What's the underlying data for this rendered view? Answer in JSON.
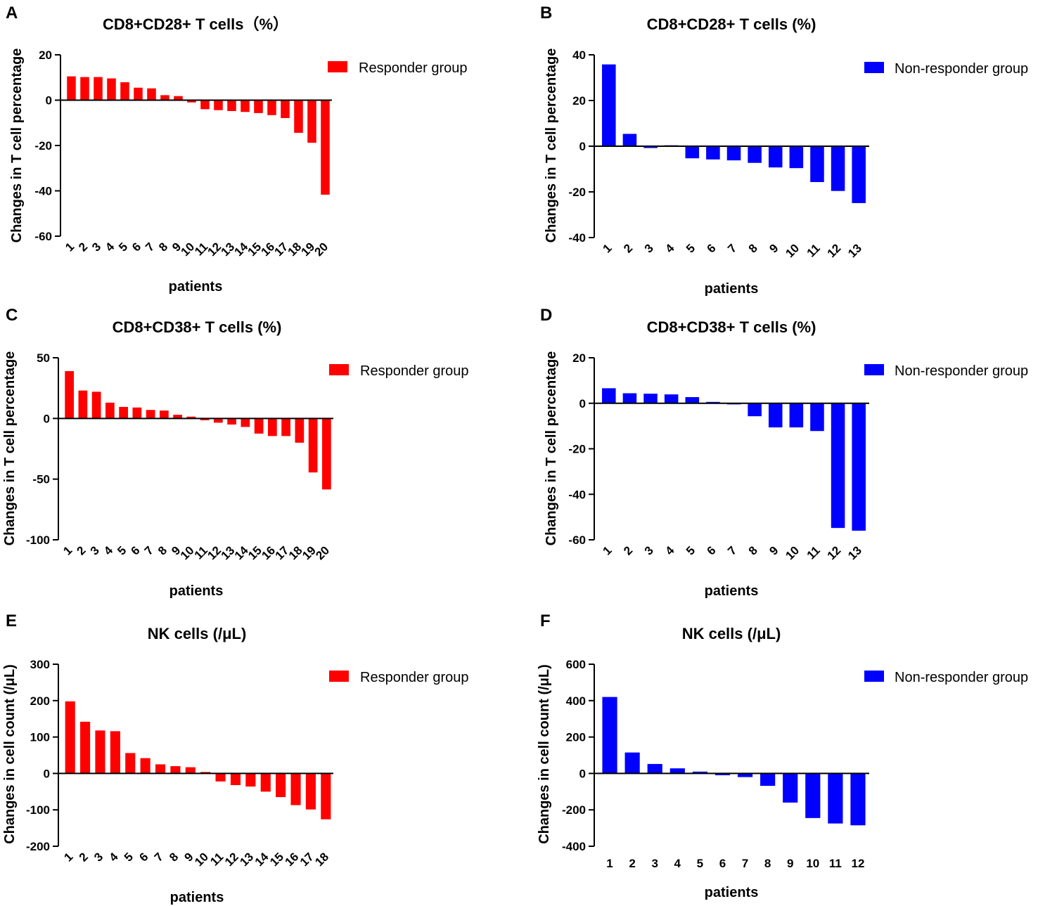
{
  "colors": {
    "responder": "#ff0000",
    "non_responder": "#0000ff",
    "axis": "#000000"
  },
  "chart_data": [
    {
      "id": "A",
      "panel_label": "A",
      "type": "bar",
      "title": "CD8+CD28+ T cells（%）",
      "xlabel": "patients",
      "ylabel": "Changes in T cell percentage",
      "ylim": [
        -60,
        20
      ],
      "yticks": [
        20,
        0,
        -20,
        -40,
        -60
      ],
      "legend": "Responder group",
      "group": "responder",
      "categories": [
        "1",
        "2",
        "3",
        "4",
        "5",
        "6",
        "7",
        "8",
        "9",
        "10",
        "11",
        "12",
        "13",
        "14",
        "15",
        "16",
        "17",
        "18",
        "19",
        "20"
      ],
      "values": [
        10.5,
        10.2,
        10.2,
        9.6,
        7.9,
        5.5,
        5.2,
        2.2,
        1.8,
        -1.0,
        -4.0,
        -4.4,
        -4.8,
        -5.2,
        -5.7,
        -6.6,
        -7.9,
        -14.4,
        -18.8,
        -41.7
      ]
    },
    {
      "id": "B",
      "panel_label": "B",
      "type": "bar",
      "title": "CD8+CD28+ T cells (%)",
      "xlabel": "patients",
      "ylabel": "Changes in T cell percentage",
      "ylim": [
        -40,
        40
      ],
      "yticks": [
        40,
        20,
        0,
        -20,
        -40
      ],
      "legend": "Non-responder group",
      "group": "non_responder",
      "categories": [
        "1",
        "2",
        "3",
        "4",
        "5",
        "6",
        "7",
        "8",
        "9",
        "10",
        "11",
        "12",
        "13"
      ],
      "values": [
        35.8,
        5.4,
        -0.8,
        0.4,
        -5.3,
        -5.8,
        -6.2,
        -7.3,
        -9.3,
        -9.6,
        -15.7,
        -19.6,
        -24.9
      ]
    },
    {
      "id": "C",
      "panel_label": "C",
      "type": "bar",
      "title": "CD8+CD38+ T cells (%)",
      "xlabel": "patients",
      "ylabel": "Changes in T cell percentage",
      "ylim": [
        -100,
        50
      ],
      "yticks": [
        50,
        0,
        -50,
        -100
      ],
      "legend": "Responder group",
      "group": "responder",
      "categories": [
        "1",
        "2",
        "3",
        "4",
        "5",
        "6",
        "7",
        "8",
        "9",
        "10",
        "11",
        "12",
        "13",
        "14",
        "15",
        "16",
        "17",
        "18",
        "19",
        "20"
      ],
      "values": [
        39,
        23,
        22,
        13,
        9.5,
        9,
        7,
        6.5,
        3,
        1.5,
        -1.5,
        -3.5,
        -5,
        -7,
        -12.5,
        -14.5,
        -14.5,
        -20,
        -44.5,
        -58.5
      ]
    },
    {
      "id": "D",
      "panel_label": "D",
      "type": "bar",
      "title": "CD8+CD38+ T cells (%)",
      "xlabel": "patients",
      "ylabel": "Changes in T cell percentage",
      "ylim": [
        -60,
        20
      ],
      "yticks": [
        20,
        0,
        -20,
        -40,
        -60
      ],
      "legend": "Non-responder group",
      "group": "non_responder",
      "categories": [
        "1",
        "2",
        "3",
        "4",
        "5",
        "6",
        "7",
        "8",
        "9",
        "10",
        "11",
        "12",
        "13"
      ],
      "values": [
        6.6,
        4.4,
        4.2,
        3.9,
        2.7,
        0.6,
        -0.5,
        -5.7,
        -10.6,
        -10.6,
        -12.2,
        -54.8,
        -56.0
      ]
    },
    {
      "id": "E",
      "panel_label": "E",
      "type": "bar",
      "title": "NK cells (/μL)",
      "xlabel": "patients",
      "ylabel": "Changes in cell count (/μL)",
      "ylim": [
        -200,
        300
      ],
      "yticks": [
        300,
        200,
        100,
        0,
        -100,
        -200
      ],
      "legend": "Responder group",
      "group": "responder",
      "categories": [
        "1",
        "2",
        "3",
        "4",
        "5",
        "6",
        "7",
        "8",
        "9",
        "10",
        "11",
        "12",
        "13",
        "14",
        "15",
        "16",
        "17",
        "18"
      ],
      "values": [
        198,
        142,
        118,
        116,
        56,
        42,
        25,
        20,
        17,
        4,
        -22,
        -32,
        -36,
        -50,
        -65,
        -87,
        -99,
        -126
      ]
    },
    {
      "id": "F",
      "panel_label": "F",
      "type": "bar",
      "title": "NK cells (/μL)",
      "xlabel": "patients",
      "ylabel": "Changes in cell count (/μL)",
      "ylim": [
        -400,
        600
      ],
      "yticks": [
        600,
        400,
        200,
        0,
        -200,
        -400
      ],
      "legend": "Non-responder group",
      "group": "non_responder",
      "categories": [
        "1",
        "2",
        "3",
        "4",
        "5",
        "6",
        "7",
        "8",
        "9",
        "10",
        "11",
        "12"
      ],
      "values": [
        420,
        115,
        52,
        28,
        10,
        -10,
        -20,
        -68,
        -160,
        -245,
        -275,
        -285
      ]
    }
  ]
}
